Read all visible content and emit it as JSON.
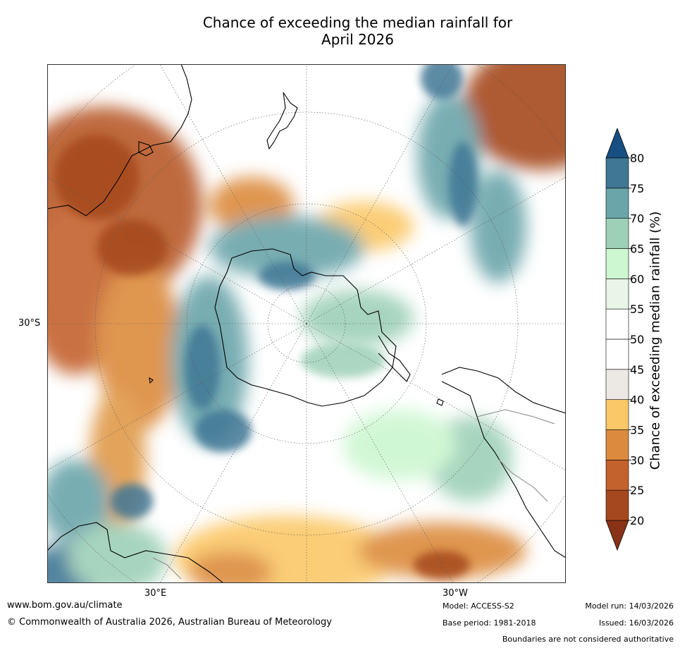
{
  "title": {
    "line1": "Chance of exceeding the median rainfall for",
    "line2": "April 2026"
  },
  "map_labels": {
    "lat_30s": "30°S",
    "lon_30e": "30°E",
    "lon_30w": "30°W"
  },
  "colorbar": {
    "label": "Chance of exceeding median rainfall (%)",
    "ticks": [
      "20",
      "25",
      "30",
      "35",
      "40",
      "45",
      "50",
      "55",
      "60",
      "65",
      "70",
      "75",
      "80"
    ],
    "colors": [
      "#a6481f",
      "#c4622e",
      "#dc8b3e",
      "#fbc867",
      "#ece9e4",
      "#ffffff",
      "#ffffff",
      "#e8f5e8",
      "#ccf7d0",
      "#9ed0b8",
      "#6aa5aa",
      "#3f7795"
    ],
    "low_extend_color": "#8a3217",
    "high_extend_color": "#174f82"
  },
  "footer": {
    "website": "www.bom.gov.au/climate",
    "copyright": "© Commonwealth of Australia 2026, Australian Bureau of Meteorology",
    "model": "Model: ACCESS-S2",
    "base_period": "Base period: 1981-2018",
    "model_run": "Model run: 14/03/2026",
    "issued": "Issued: 16/03/2026",
    "disclaimer": "Boundaries are not considered authoritative"
  }
}
